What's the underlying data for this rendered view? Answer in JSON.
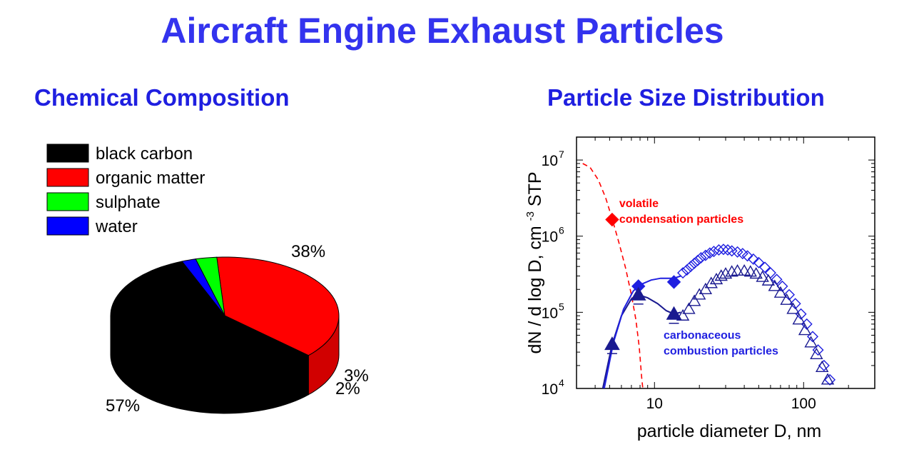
{
  "title": "Aircraft Engine Exhaust Particles",
  "chart_data": [
    {
      "type": "pie",
      "title": "Chemical Composition",
      "legend_placement": "top-left",
      "slices": [
        {
          "label": "black carbon",
          "value": 57,
          "value_label": "57%",
          "color": "#000000"
        },
        {
          "label": "organic matter",
          "value": 38,
          "value_label": "38%",
          "color": "#ff0000"
        },
        {
          "label": "sulphate",
          "value": 3,
          "value_label": "3%",
          "color": "#00ff00"
        },
        {
          "label": "water",
          "value": 2,
          "value_label": "2%",
          "color": "#0000ff"
        }
      ]
    },
    {
      "type": "scatter",
      "title": "Particle Size Distribution",
      "xlabel": "particle diameter  D,  nm",
      "ylabel": "dN / d log D, cm",
      "ylabel_superscript": "-3",
      "ylabel_suffix": "STP",
      "x_scale": "log",
      "y_scale": "log",
      "xlim": [
        3,
        300
      ],
      "ylim": [
        10000,
        20000000
      ],
      "x_ticks": [
        {
          "value": 10,
          "label": "10"
        },
        {
          "value": 100,
          "label": "100"
        }
      ],
      "y_ticks": [
        {
          "value": 10000,
          "base": "10",
          "exp": "4"
        },
        {
          "value": 100000,
          "base": "10",
          "exp": "5"
        },
        {
          "value": 1000000,
          "base": "10",
          "exp": "6"
        },
        {
          "value": 10000000,
          "base": "10",
          "exp": "7"
        }
      ],
      "annotations": [
        {
          "lines": [
            "volatile",
            "condensation particles"
          ],
          "x": 5.8,
          "y": 2400000,
          "color": "#ff0000"
        },
        {
          "lines": [
            "carbonaceous",
            "combustion particles"
          ],
          "x": 11.5,
          "y": 45000,
          "color": "#1f1fe0"
        }
      ],
      "series": [
        {
          "marker": "diamond-filled",
          "color": "#ff0000",
          "points": [
            [
              5.2,
              1650000
            ]
          ]
        },
        {
          "marker": "diamond-filled",
          "color": "#1f1fe0",
          "points": [
            [
              7.8,
              220000
            ],
            [
              13.5,
              250000
            ]
          ]
        },
        {
          "marker": "triangle-filled",
          "color": "#1a1a90",
          "points": [
            [
              5.2,
              38000
            ],
            [
              7.8,
              170000
            ],
            [
              13.5,
              95000
            ]
          ]
        },
        {
          "marker": "diamond-open",
          "color": "#1f1fe0",
          "points": [
            [
              15.5,
              330000
            ],
            [
              16.5,
              360000
            ],
            [
              17.5,
              400000
            ],
            [
              18.5,
              440000
            ],
            [
              19.5,
              480000
            ],
            [
              20.5,
              520000
            ],
            [
              22,
              560000
            ],
            [
              23.5,
              600000
            ],
            [
              25,
              630000
            ],
            [
              27,
              660000
            ],
            [
              29,
              670000
            ],
            [
              31,
              660000
            ],
            [
              33,
              640000
            ],
            [
              36,
              620000
            ],
            [
              39,
              590000
            ],
            [
              42,
              550000
            ],
            [
              46,
              500000
            ],
            [
              50,
              450000
            ],
            [
              55,
              390000
            ],
            [
              60,
              330000
            ],
            [
              66,
              270000
            ],
            [
              72,
              220000
            ],
            [
              80,
              170000
            ],
            [
              88,
              130000
            ],
            [
              96,
              95000
            ],
            [
              105,
              70000
            ],
            [
              115,
              48000
            ],
            [
              125,
              32000
            ],
            [
              137,
              20000
            ],
            [
              150,
              13000
            ]
          ]
        },
        {
          "marker": "triangle-open",
          "color": "#1a1a90",
          "points": [
            [
              15.5,
              90000
            ],
            [
              17,
              110000
            ],
            [
              18.5,
              140000
            ],
            [
              20,
              170000
            ],
            [
              22,
              200000
            ],
            [
              24,
              240000
            ],
            [
              26,
              270000
            ],
            [
              28,
              300000
            ],
            [
              30,
              320000
            ],
            [
              33,
              340000
            ],
            [
              36,
              350000
            ],
            [
              40,
              350000
            ],
            [
              44,
              340000
            ],
            [
              48,
              320000
            ],
            [
              53,
              290000
            ],
            [
              58,
              260000
            ],
            [
              64,
              220000
            ],
            [
              70,
              180000
            ],
            [
              77,
              145000
            ],
            [
              85,
              110000
            ],
            [
              93,
              80000
            ],
            [
              102,
              58000
            ],
            [
              112,
              40000
            ],
            [
              122,
              28000
            ],
            [
              133,
              19000
            ],
            [
              145,
              13000
            ]
          ]
        }
      ],
      "lines": [
        {
          "style": "dashed",
          "color": "#ff0000",
          "points": [
            [
              3.3,
              9000000
            ],
            [
              3.7,
              8000000
            ],
            [
              4.2,
              5500000
            ],
            [
              4.7,
              3200000
            ],
            [
              5.2,
              1700000
            ],
            [
              5.8,
              800000
            ],
            [
              6.4,
              380000
            ],
            [
              7,
              170000
            ],
            [
              7.5,
              80000
            ],
            [
              7.9,
              35000
            ],
            [
              8.2,
              14000
            ],
            [
              8.35,
              10000
            ]
          ]
        },
        {
          "style": "solid",
          "color": "#1a1a90",
          "points": [
            [
              4.5,
              10000
            ],
            [
              5.2,
              38000
            ],
            [
              6,
              90000
            ],
            [
              7,
              150000
            ],
            [
              7.8,
              170000
            ],
            [
              9,
              155000
            ],
            [
              10.5,
              130000
            ],
            [
              12,
              105000
            ],
            [
              13.5,
              95000
            ],
            [
              15,
              100000
            ]
          ]
        },
        {
          "style": "solid",
          "color": "#1f1fe0",
          "points": [
            [
              4.6,
              10000
            ],
            [
              5.3,
              40000
            ],
            [
              6.2,
              110000
            ],
            [
              7.2,
              190000
            ],
            [
              8,
              230000
            ],
            [
              9.5,
              265000
            ],
            [
              11,
              280000
            ],
            [
              13.5,
              280000
            ],
            [
              15,
              300000
            ]
          ]
        }
      ]
    }
  ]
}
